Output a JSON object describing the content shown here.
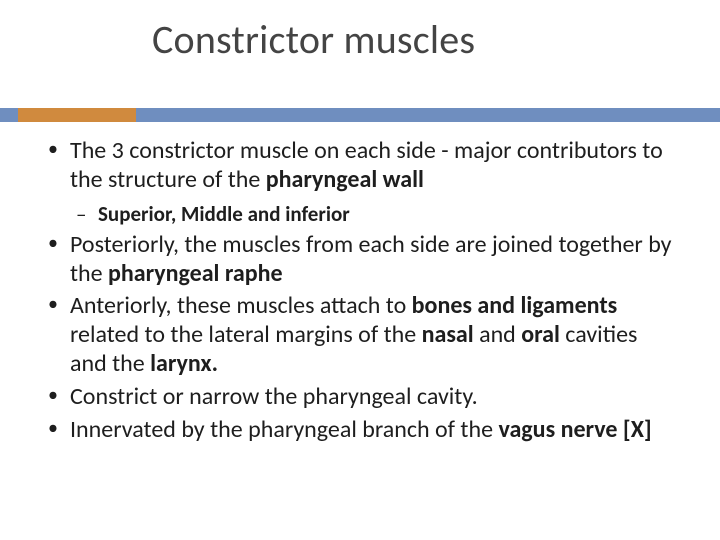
{
  "title": "Constrictor muscles",
  "colors": {
    "bar": "#6f8ebf",
    "accent": "#d08a3e",
    "title_text": "#444444",
    "body_text": "#1e1e1e",
    "background": "#ffffff"
  },
  "typography": {
    "title_fontsize": 40,
    "body_fontsize": 24,
    "sub_fontsize": 21,
    "font_family": "Calibri"
  },
  "bullets": [
    {
      "pre": "The 3 constrictor muscle on each side - major contributors to the structure of the ",
      "bold": "pharyngeal wall",
      "post": "",
      "sub": [
        {
          "text": "Superior, Middle and inferior"
        }
      ]
    },
    {
      "pre": "Posteriorly, the muscles from each side are joined  together by the ",
      "bold": "pharyngeal raphe",
      "post": ""
    },
    {
      "pre": "Anteriorly, these muscles attach to ",
      "bold": "bones and ligaments",
      "mid": " related to the lateral margins of the ",
      "bold2": "nasal ",
      "mid2": " and ",
      "bold3": "oral ",
      "mid3": "cavities and the ",
      "bold4": "larynx.",
      "post": ""
    },
    {
      "pre": "Constrict or narrow the pharyngeal cavity.",
      "bold": "",
      "post": ""
    },
    {
      "pre": "Innervated by the pharyngeal branch of the ",
      "bold": "vagus  nerve [X]",
      "post": ""
    }
  ]
}
